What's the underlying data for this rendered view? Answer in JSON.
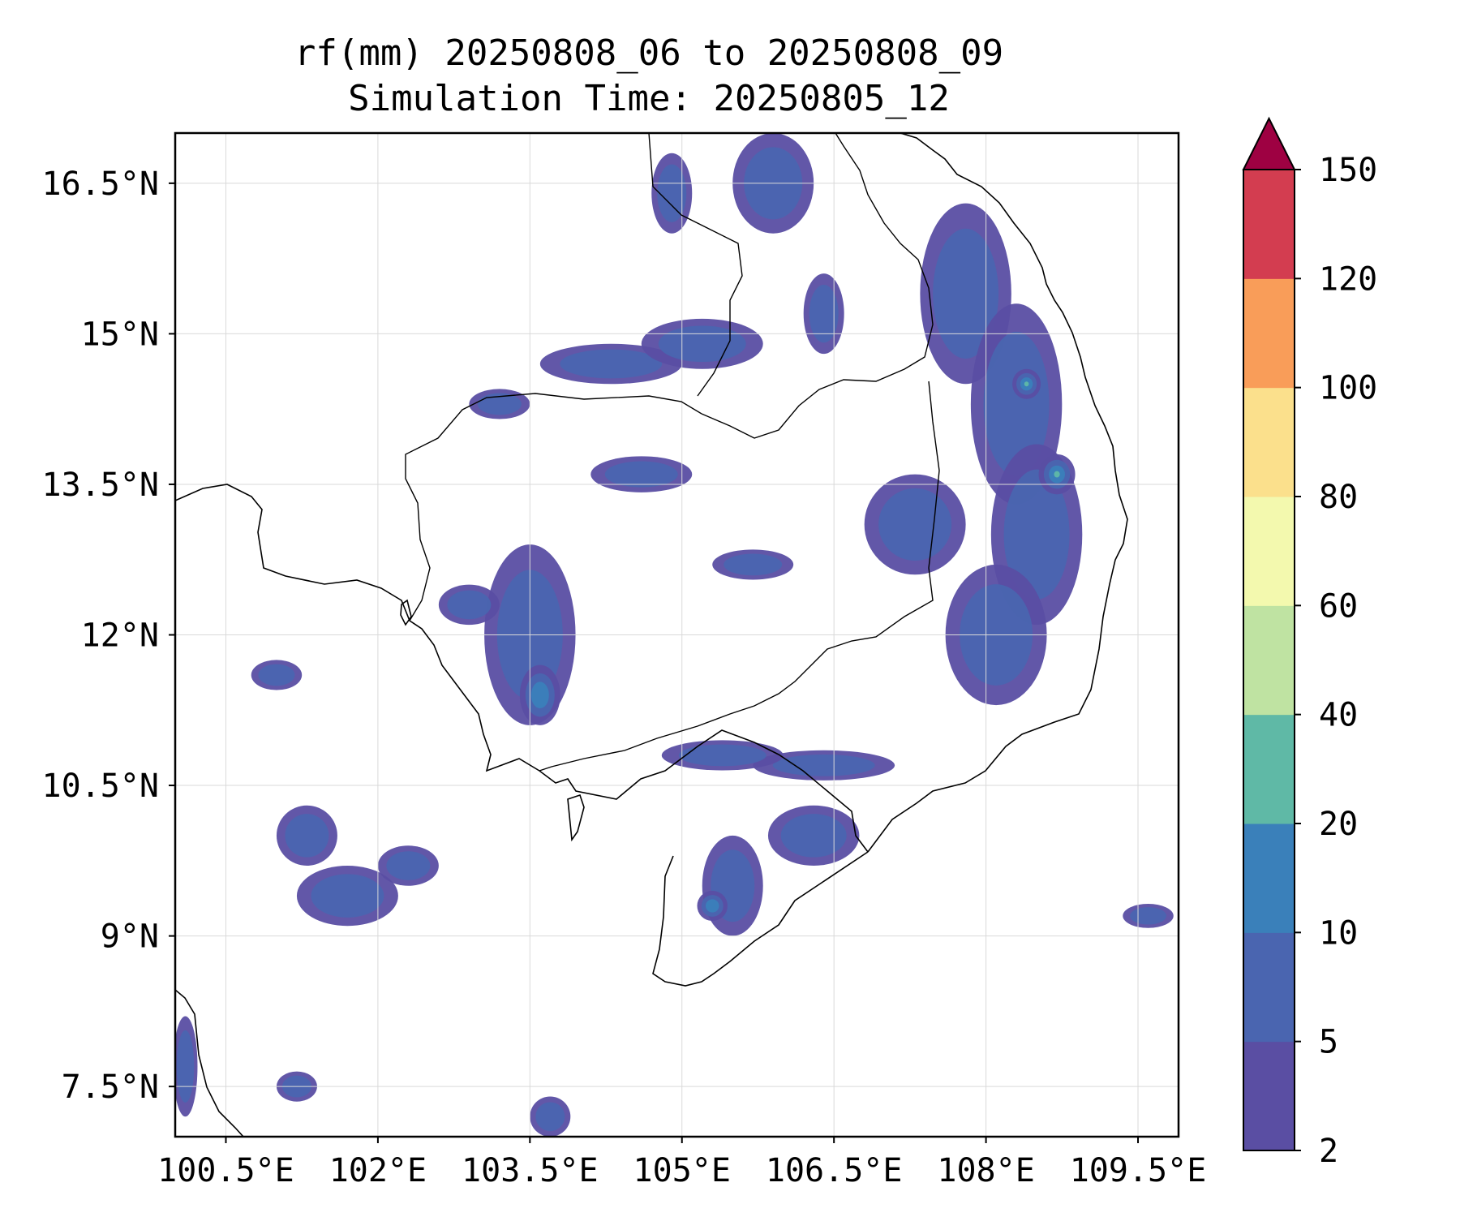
{
  "title": {
    "line1": "rf(mm) 20250808_06 to 20250808_09",
    "line2": "Simulation Time: 20250805_12"
  },
  "map": {
    "lon_range": [
      100.0,
      109.9
    ],
    "lat_range": [
      7.0,
      17.0
    ],
    "lon_ticks": [
      {
        "value": 100.5,
        "label": "100.5°E"
      },
      {
        "value": 102.0,
        "label": "102°E"
      },
      {
        "value": 103.5,
        "label": "103.5°E"
      },
      {
        "value": 105.0,
        "label": "105°E"
      },
      {
        "value": 106.5,
        "label": "106.5°E"
      },
      {
        "value": 108.0,
        "label": "108°E"
      },
      {
        "value": 109.5,
        "label": "109.5°E"
      }
    ],
    "lat_ticks": [
      {
        "value": 16.5,
        "label": "16.5°N"
      },
      {
        "value": 15.0,
        "label": "15°N"
      },
      {
        "value": 13.5,
        "label": "13.5°N"
      },
      {
        "value": 12.0,
        "label": "12°N"
      },
      {
        "value": 10.5,
        "label": "10.5°N"
      },
      {
        "value": 9.0,
        "label": "9°N"
      },
      {
        "value": 7.5,
        "label": "7.5°N"
      }
    ],
    "grid": true
  },
  "colorbar": {
    "levels": [
      "2",
      "5",
      "10",
      "20",
      "40",
      "60",
      "80",
      "100",
      "120",
      "150"
    ],
    "colors": [
      "#5a4ea3",
      "#4a65b0",
      "#3a80ba",
      "#5fb9a6",
      "#bfe3a2",
      "#f3f9ae",
      "#fbe08c",
      "#f99d59",
      "#d33d50"
    ],
    "extend_color": "#9e0142"
  },
  "rain_cells": [
    {
      "lon": 107.8,
      "lat": 15.4,
      "rlon": 0.45,
      "rlat": 0.9,
      "level": 1
    },
    {
      "lon": 108.3,
      "lat": 14.3,
      "rlon": 0.45,
      "rlat": 1.0,
      "level": 1
    },
    {
      "lon": 108.5,
      "lat": 13.0,
      "rlon": 0.45,
      "rlat": 0.9,
      "level": 1
    },
    {
      "lon": 108.1,
      "lat": 12.0,
      "rlon": 0.5,
      "rlat": 0.7,
      "level": 1
    },
    {
      "lon": 108.7,
      "lat": 13.6,
      "rlon": 0.18,
      "rlat": 0.2,
      "level": 3
    },
    {
      "lon": 108.4,
      "lat": 14.5,
      "rlon": 0.14,
      "rlat": 0.15,
      "level": 3
    },
    {
      "lon": 107.3,
      "lat": 13.1,
      "rlon": 0.5,
      "rlat": 0.5,
      "level": 1
    },
    {
      "lon": 103.5,
      "lat": 12.0,
      "rlon": 0.45,
      "rlat": 0.9,
      "level": 1
    },
    {
      "lon": 103.6,
      "lat": 11.4,
      "rlon": 0.2,
      "rlat": 0.3,
      "level": 2
    },
    {
      "lon": 104.3,
      "lat": 14.7,
      "rlon": 0.7,
      "rlat": 0.2,
      "level": 1
    },
    {
      "lon": 105.2,
      "lat": 14.9,
      "rlon": 0.6,
      "rlat": 0.25,
      "level": 1
    },
    {
      "lon": 105.9,
      "lat": 16.5,
      "rlon": 0.4,
      "rlat": 0.5,
      "level": 1
    },
    {
      "lon": 104.9,
      "lat": 16.4,
      "rlon": 0.2,
      "rlat": 0.4,
      "level": 1
    },
    {
      "lon": 106.4,
      "lat": 15.2,
      "rlon": 0.2,
      "rlat": 0.4,
      "level": 1
    },
    {
      "lon": 105.5,
      "lat": 9.5,
      "rlon": 0.3,
      "rlat": 0.5,
      "level": 1
    },
    {
      "lon": 105.3,
      "lat": 9.3,
      "rlon": 0.15,
      "rlat": 0.15,
      "level": 2
    },
    {
      "lon": 106.3,
      "lat": 10.0,
      "rlon": 0.45,
      "rlat": 0.3,
      "level": 1
    },
    {
      "lon": 106.4,
      "lat": 10.7,
      "rlon": 0.7,
      "rlat": 0.15,
      "level": 1
    },
    {
      "lon": 105.4,
      "lat": 10.8,
      "rlon": 0.6,
      "rlat": 0.15,
      "level": 1
    },
    {
      "lon": 101.3,
      "lat": 10.0,
      "rlon": 0.3,
      "rlat": 0.3,
      "level": 1
    },
    {
      "lon": 101.7,
      "lat": 9.4,
      "rlon": 0.5,
      "rlat": 0.3,
      "level": 1
    },
    {
      "lon": 102.3,
      "lat": 9.7,
      "rlon": 0.3,
      "rlat": 0.2,
      "level": 1
    },
    {
      "lon": 100.1,
      "lat": 7.7,
      "rlon": 0.12,
      "rlat": 0.5,
      "level": 1
    },
    {
      "lon": 109.6,
      "lat": 9.2,
      "rlon": 0.25,
      "rlat": 0.12,
      "level": 1
    },
    {
      "lon": 101.0,
      "lat": 11.6,
      "rlon": 0.25,
      "rlat": 0.15,
      "level": 1
    },
    {
      "lon": 102.9,
      "lat": 12.3,
      "rlon": 0.3,
      "rlat": 0.2,
      "level": 1
    },
    {
      "lon": 104.6,
      "lat": 13.6,
      "rlon": 0.5,
      "rlat": 0.18,
      "level": 1
    },
    {
      "lon": 105.7,
      "lat": 12.7,
      "rlon": 0.4,
      "rlat": 0.15,
      "level": 1
    },
    {
      "lon": 103.2,
      "lat": 14.3,
      "rlon": 0.3,
      "rlat": 0.15,
      "level": 1
    },
    {
      "lon": 101.2,
      "lat": 7.5,
      "rlon": 0.2,
      "rlat": 0.15,
      "level": 1
    },
    {
      "lon": 103.7,
      "lat": 7.2,
      "rlon": 0.2,
      "rlat": 0.2,
      "level": 1
    }
  ]
}
